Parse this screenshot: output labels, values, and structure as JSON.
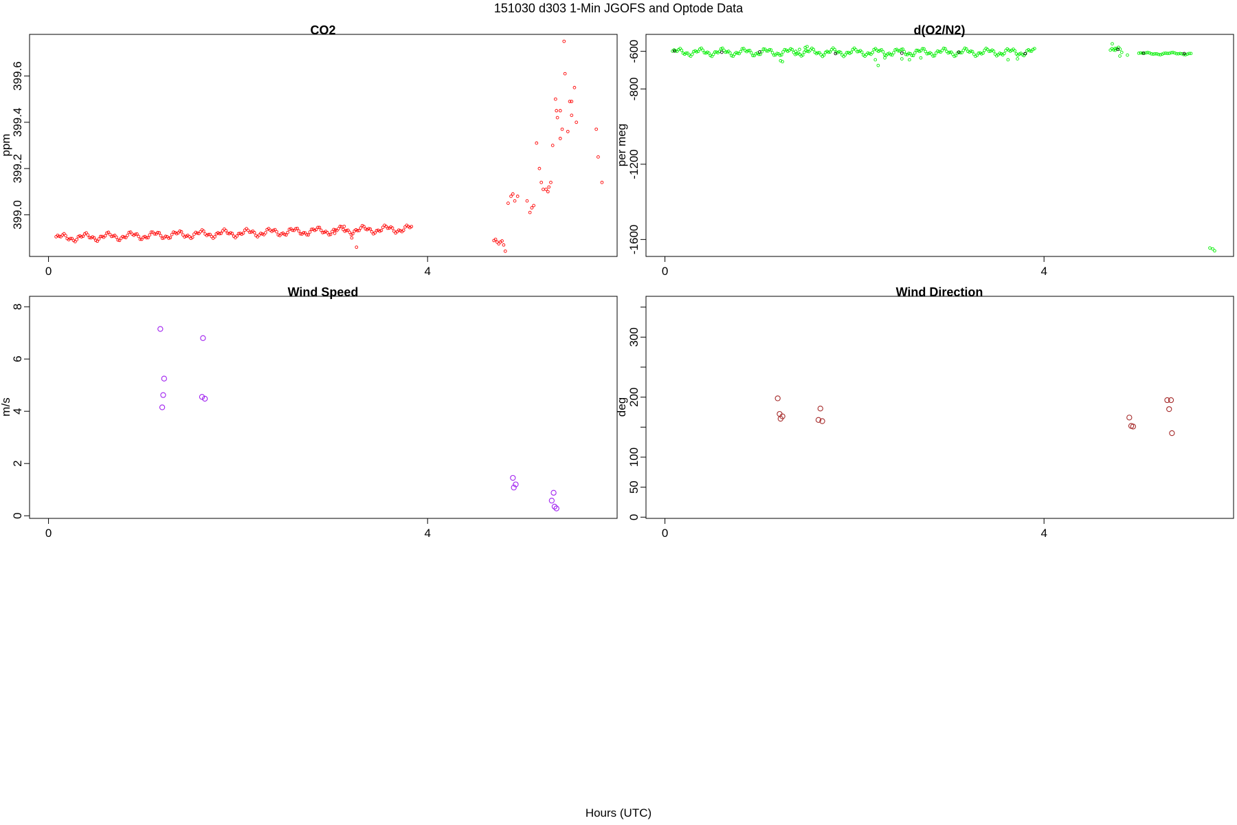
{
  "figure": {
    "title": "151030   d303   1-Min  JGOFS and Optode Data",
    "xlabel": "Hours (UTC)"
  },
  "chart_data": [
    {
      "type": "scatter",
      "title": "CO2",
      "xlabel": "",
      "ylabel": "ppm",
      "xlim": [
        -0.2,
        6.0
      ],
      "ylim": [
        398.82,
        399.78
      ],
      "xticks": [
        0,
        4
      ],
      "yticks": [
        399.0,
        399.2,
        399.4,
        399.6
      ],
      "ytick_labels": [
        "399.0",
        "399.2",
        "399.4",
        "399.6"
      ],
      "series": [
        {
          "color": "#ff0000",
          "marker": "small-circle",
          "segments": [
            {
              "x0": 0.08,
              "x1": 3.83,
              "y": 398.9,
              "amp": 0.012,
              "trend": 0.04,
              "n": 225
            },
            {
              "x0": 4.7,
              "x1": 4.82,
              "y": 398.88,
              "amp": 0.02,
              "trend": -0.03,
              "n": 8
            }
          ],
          "points": [
            [
              3.02,
              398.92
            ],
            [
              3.12,
              398.95
            ],
            [
              3.2,
              398.9
            ],
            [
              3.25,
              398.86
            ],
            [
              4.85,
              399.05
            ],
            [
              4.88,
              399.08
            ],
            [
              4.9,
              399.09
            ],
            [
              4.92,
              399.06
            ],
            [
              4.95,
              399.08
            ],
            [
              5.05,
              399.06
            ],
            [
              5.08,
              399.01
            ],
            [
              5.1,
              399.03
            ],
            [
              5.12,
              399.04
            ],
            [
              5.15,
              399.31
            ],
            [
              5.18,
              399.2
            ],
            [
              5.2,
              399.14
            ],
            [
              5.22,
              399.11
            ],
            [
              5.25,
              399.11
            ],
            [
              5.27,
              399.1
            ],
            [
              5.28,
              399.12
            ],
            [
              5.3,
              399.14
            ],
            [
              5.32,
              399.3
            ],
            [
              5.35,
              399.5
            ],
            [
              5.36,
              399.45
            ],
            [
              5.37,
              399.42
            ],
            [
              5.4,
              399.33
            ],
            [
              5.4,
              399.45
            ],
            [
              5.42,
              399.37
            ],
            [
              5.44,
              399.75
            ],
            [
              5.45,
              399.61
            ],
            [
              5.48,
              399.36
            ],
            [
              5.5,
              399.49
            ],
            [
              5.52,
              399.49
            ],
            [
              5.52,
              399.43
            ],
            [
              5.55,
              399.55
            ],
            [
              5.57,
              399.4
            ],
            [
              5.78,
              399.37
            ],
            [
              5.8,
              399.25
            ],
            [
              5.84,
              399.14
            ]
          ]
        }
      ]
    },
    {
      "type": "scatter",
      "title": "d(O2/N2)",
      "xlabel": "",
      "ylabel": "per meg",
      "xlim": [
        -0.2,
        6.0
      ],
      "ylim": [
        -1690,
        -510
      ],
      "xticks": [
        0,
        4
      ],
      "yticks": [
        -600,
        -800,
        -1200,
        -1600
      ],
      "ytick_labels": [
        "-600",
        "-800",
        "-1200",
        "-1600"
      ],
      "series": [
        {
          "color": "#00ee00",
          "marker": "small-circle",
          "segments": [
            {
              "x0": 0.08,
              "x1": 3.9,
              "y": -605,
              "amp": 14,
              "trend": 0,
              "n": 240
            },
            {
              "x0": 4.7,
              "x1": 4.82,
              "y": -600,
              "amp": 15,
              "trend": 0,
              "n": 8
            },
            {
              "x0": 5.0,
              "x1": 5.55,
              "y": -612,
              "amp": 4,
              "trend": 0,
              "n": 30
            }
          ],
          "points": [
            [
              1.22,
              -650
            ],
            [
              1.24,
              -655
            ],
            [
              1.38,
              -600
            ],
            [
              1.42,
              -590
            ],
            [
              1.48,
              -580
            ],
            [
              1.5,
              -575
            ],
            [
              2.22,
              -645
            ],
            [
              2.25,
              -675
            ],
            [
              2.32,
              -635
            ],
            [
              2.5,
              -640
            ],
            [
              2.58,
              -645
            ],
            [
              2.7,
              -635
            ],
            [
              3.62,
              -645
            ],
            [
              3.72,
              -640
            ],
            [
              4.72,
              -560
            ],
            [
              4.75,
              -585
            ],
            [
              4.8,
              -625
            ],
            [
              4.88,
              -620
            ],
            [
              5.75,
              -1645
            ],
            [
              5.78,
              -1650
            ],
            [
              5.8,
              -1660
            ]
          ]
        },
        {
          "color": "#000000",
          "marker": "small-circle",
          "points": [
            [
              0.1,
              -598
            ],
            [
              0.6,
              -605
            ],
            [
              1.0,
              -603
            ],
            [
              1.8,
              -612
            ],
            [
              2.5,
              -610
            ],
            [
              3.1,
              -605
            ],
            [
              3.8,
              -612
            ],
            [
              4.78,
              -590
            ],
            [
              5.05,
              -610
            ],
            [
              5.48,
              -612
            ]
          ]
        }
      ]
    },
    {
      "type": "scatter",
      "title": "Wind Speed",
      "xlabel": "",
      "ylabel": "m/s",
      "xlim": [
        -0.2,
        6.0
      ],
      "ylim": [
        -0.1,
        8.4
      ],
      "xticks": [
        0,
        4
      ],
      "yticks": [
        0,
        2,
        4,
        6,
        8
      ],
      "ytick_labels": [
        "0",
        "2",
        "4",
        "6",
        "8"
      ],
      "series": [
        {
          "color": "#a020f0",
          "marker": "open-circle",
          "points": [
            [
              1.18,
              7.15
            ],
            [
              1.22,
              5.25
            ],
            [
              1.21,
              4.62
            ],
            [
              1.2,
              4.15
            ],
            [
              1.63,
              6.8
            ],
            [
              1.62,
              4.55
            ],
            [
              1.65,
              4.48
            ],
            [
              4.9,
              1.45
            ],
            [
              4.93,
              1.2
            ],
            [
              4.91,
              1.08
            ],
            [
              5.33,
              0.88
            ],
            [
              5.31,
              0.58
            ],
            [
              5.34,
              0.35
            ],
            [
              5.36,
              0.28
            ]
          ]
        }
      ]
    },
    {
      "type": "scatter",
      "title": "Wind Direction",
      "xlabel": "",
      "ylabel": "deg",
      "xlim": [
        -0.2,
        6.0
      ],
      "ylim": [
        -2,
        368
      ],
      "xticks": [
        0,
        4
      ],
      "yticks": [
        0,
        50,
        100,
        200,
        300
      ],
      "ytick_labels": [
        "0",
        "50",
        "100",
        "200",
        "300"
      ],
      "minor_yticks": [
        150,
        250,
        350
      ],
      "series": [
        {
          "color": "#a52a2a",
          "marker": "open-circle",
          "points": [
            [
              1.19,
              198
            ],
            [
              1.21,
              172
            ],
            [
              1.24,
              168
            ],
            [
              1.22,
              164
            ],
            [
              1.64,
              181
            ],
            [
              1.62,
              162
            ],
            [
              1.66,
              160
            ],
            [
              4.9,
              166
            ],
            [
              4.92,
              152
            ],
            [
              4.94,
              151
            ],
            [
              5.3,
              195
            ],
            [
              5.34,
              195
            ],
            [
              5.32,
              180
            ],
            [
              5.35,
              140
            ]
          ]
        }
      ]
    }
  ]
}
